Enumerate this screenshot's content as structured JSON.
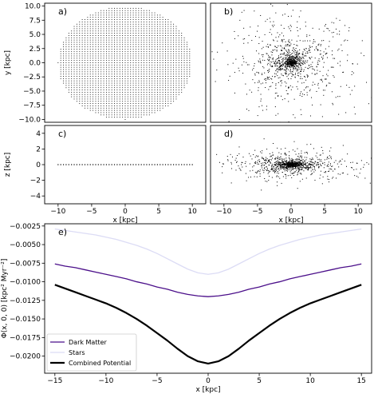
{
  "chart_data": [
    {
      "id": "a",
      "panel_label": "a)",
      "type": "scatter",
      "pattern": "uniform-grid-disk",
      "xlim": [
        -12,
        12
      ],
      "ylim": [
        -10.5,
        10.5
      ],
      "xticks": [],
      "yticks": [
        10.0,
        7.5,
        5.0,
        2.5,
        0.0,
        -2.5,
        -5.0,
        -7.5,
        -10.0
      ],
      "ytick_labels": [
        "10.0",
        "7.5",
        "5.0",
        "2.5",
        "0.0",
        "−2.5",
        "−5.0",
        "−7.5",
        "−10.0"
      ],
      "xlabel": "",
      "ylabel": "y [kpc]",
      "disk_radius": 10,
      "grid_spacing": 0.4
    },
    {
      "id": "b",
      "panel_label": "b)",
      "type": "scatter",
      "pattern": "concentrated-halo",
      "xlim": [
        -12,
        12
      ],
      "ylim": [
        -10.5,
        10.5
      ],
      "xticks": [],
      "yticks": [],
      "xlabel": "",
      "ylabel": "",
      "n_points": 1300,
      "scale_x": 2.2,
      "scale_y": 2.0
    },
    {
      "id": "c",
      "panel_label": "c)",
      "type": "scatter",
      "pattern": "thin-line",
      "xlim": [
        -12,
        12
      ],
      "ylim": [
        -5,
        5
      ],
      "xticks": [
        -10,
        -5,
        0,
        5,
        10
      ],
      "xtick_labels": [
        "−10",
        "−5",
        "0",
        "5",
        "10"
      ],
      "yticks": [
        4,
        2,
        0,
        -2,
        -4
      ],
      "ytick_labels": [
        "4",
        "2",
        "0",
        "−2",
        "−4"
      ],
      "xlabel": "x [kpc]",
      "ylabel": "z [kpc]",
      "line_extent": [
        -10,
        10
      ],
      "line_spacing": 0.4
    },
    {
      "id": "d",
      "panel_label": "d)",
      "type": "scatter",
      "pattern": "flattened-halo",
      "xlim": [
        -12,
        12
      ],
      "ylim": [
        -5,
        5
      ],
      "xticks": [
        -10,
        -5,
        0,
        5,
        10
      ],
      "xtick_labels": [
        "−10",
        "−5",
        "0",
        "5",
        "10"
      ],
      "yticks": [],
      "xlabel": "x [kpc]",
      "ylabel": "",
      "n_points": 1300,
      "scale_x": 2.2,
      "scale_z": 0.45
    },
    {
      "id": "e",
      "panel_label": "e)",
      "type": "line",
      "xlim": [
        -16,
        16
      ],
      "ylim": [
        -0.0223,
        -0.0022
      ],
      "xticks": [
        -15,
        -10,
        -5,
        0,
        5,
        10,
        15
      ],
      "xtick_labels": [
        "−15",
        "−10",
        "−5",
        "0",
        "5",
        "10",
        "15"
      ],
      "yticks": [
        -0.0025,
        -0.005,
        -0.0075,
        -0.01,
        -0.0125,
        -0.015,
        -0.0175,
        -0.02
      ],
      "ytick_labels": [
        "−0.0025",
        "−0.0050",
        "−0.0075",
        "−0.0100",
        "−0.0125",
        "−0.0150",
        "−0.0175",
        "−0.0200"
      ],
      "xlabel": "x [kpc]",
      "ylabel": "Φ(x, 0, 0) [kpc² Myr⁻²]",
      "x": [
        -15,
        -14,
        -13,
        -12,
        -11,
        -10,
        -9,
        -8,
        -7,
        -6,
        -5,
        -4,
        -3,
        -2,
        -1,
        0,
        1,
        2,
        3,
        4,
        5,
        6,
        7,
        8,
        9,
        10,
        11,
        12,
        13,
        14,
        15
      ],
      "series": [
        {
          "name": "Dark Matter",
          "color": "#4b0f8a",
          "values": [
            -0.0076,
            -0.0079,
            -0.0081,
            -0.0084,
            -0.0087,
            -0.009,
            -0.0093,
            -0.0096,
            -0.01,
            -0.0103,
            -0.0107,
            -0.011,
            -0.0114,
            -0.0117,
            -0.0119,
            -0.012,
            -0.0119,
            -0.0117,
            -0.0114,
            -0.011,
            -0.0107,
            -0.0103,
            -0.01,
            -0.0096,
            -0.0093,
            -0.009,
            -0.0087,
            -0.0084,
            -0.0081,
            -0.0079,
            -0.0076
          ]
        },
        {
          "name": "Stars",
          "color": "#dcdcf5",
          "values": [
            -0.0029,
            -0.0031,
            -0.0033,
            -0.0035,
            -0.0037,
            -0.004,
            -0.0043,
            -0.0047,
            -0.0051,
            -0.0056,
            -0.0062,
            -0.0069,
            -0.0076,
            -0.0083,
            -0.0088,
            -0.009,
            -0.0088,
            -0.0083,
            -0.0076,
            -0.0069,
            -0.0062,
            -0.0056,
            -0.0051,
            -0.0047,
            -0.0043,
            -0.004,
            -0.0037,
            -0.0035,
            -0.0033,
            -0.0031,
            -0.0029
          ]
        },
        {
          "name": "Combined Potential",
          "color": "#000000",
          "values": [
            -0.0104,
            -0.0109,
            -0.0114,
            -0.0119,
            -0.0124,
            -0.0129,
            -0.0135,
            -0.0142,
            -0.015,
            -0.0159,
            -0.0169,
            -0.0179,
            -0.019,
            -0.02,
            -0.0207,
            -0.021,
            -0.0207,
            -0.02,
            -0.019,
            -0.0179,
            -0.0169,
            -0.0159,
            -0.015,
            -0.0142,
            -0.0135,
            -0.0129,
            -0.0124,
            -0.0119,
            -0.0114,
            -0.0109,
            -0.0104
          ]
        }
      ],
      "legend_loc": "lower-left"
    }
  ]
}
